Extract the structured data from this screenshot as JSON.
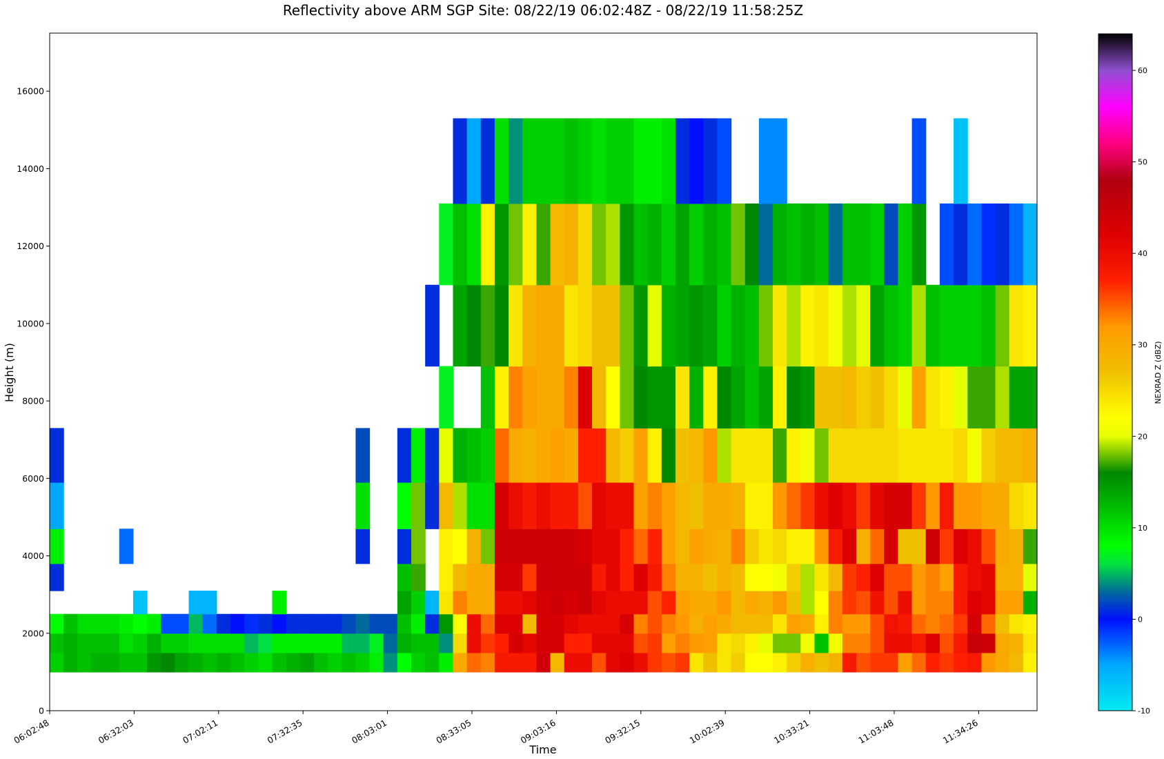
{
  "chart_data": {
    "type": "heatmap",
    "title": "Reflectivity above ARM SGP Site: 08/22/19 06:02:48Z - 08/22/19 11:58:25Z",
    "xlabel": "Time",
    "ylabel": "Height (m)",
    "x_ticks": [
      "06:02:48",
      "06:32:03",
      "07:02:11",
      "07:32:35",
      "08:03:01",
      "08:33:05",
      "09:03:16",
      "09:32:15",
      "10:02:39",
      "10:33:21",
      "11:03:48",
      "11:34:26"
    ],
    "y_ticks": [
      0,
      2000,
      4000,
      6000,
      8000,
      10000,
      12000,
      14000,
      16000
    ],
    "ylim": [
      0,
      17500
    ],
    "colorbar": {
      "label": "NEXRAD Z (dBZ)",
      "vmin": -10,
      "vmax": 64,
      "ticks": [
        -10,
        0,
        10,
        20,
        30,
        40,
        50,
        60
      ]
    },
    "height_bins": [
      {
        "from": 1000,
        "to": 1500
      },
      {
        "from": 1500,
        "to": 2000
      },
      {
        "from": 2000,
        "to": 2500
      },
      {
        "from": 2500,
        "to": 3100
      },
      {
        "from": 3100,
        "to": 3800
      },
      {
        "from": 3800,
        "to": 4700
      },
      {
        "from": 4700,
        "to": 5900
      },
      {
        "from": 5900,
        "to": 7300
      },
      {
        "from": 7300,
        "to": 8900
      },
      {
        "from": 8900,
        "to": 11000
      },
      {
        "from": 11000,
        "to": 13100
      },
      {
        "from": 13100,
        "to": 15300
      }
    ],
    "columns": [
      [
        11,
        12,
        8,
        null,
        1,
        9,
        -5,
        1,
        null,
        null,
        null,
        null
      ],
      [
        13,
        13,
        12,
        null,
        null,
        null,
        null,
        null,
        null,
        null,
        null,
        null
      ],
      [
        12,
        12,
        10,
        null,
        null,
        null,
        null,
        null,
        null,
        null,
        null,
        null
      ],
      [
        13,
        12,
        10,
        null,
        null,
        null,
        null,
        null,
        null,
        null,
        null,
        null
      ],
      [
        13,
        12,
        10,
        null,
        null,
        null,
        null,
        null,
        null,
        null,
        null,
        null
      ],
      [
        12,
        10,
        9,
        null,
        null,
        -3,
        null,
        null,
        null,
        null,
        null,
        null
      ],
      [
        12,
        11,
        8,
        -7,
        null,
        null,
        null,
        null,
        null,
        null,
        null,
        null
      ],
      [
        15,
        13,
        9,
        null,
        null,
        null,
        null,
        null,
        null,
        null,
        null,
        null
      ],
      [
        16,
        11,
        -2,
        null,
        null,
        null,
        null,
        null,
        null,
        null,
        null,
        null
      ],
      [
        14,
        11,
        -2,
        null,
        null,
        null,
        null,
        null,
        null,
        null,
        null,
        null
      ],
      [
        13,
        10,
        5,
        -6,
        null,
        null,
        null,
        null,
        null,
        null,
        null,
        null
      ],
      [
        12,
        10,
        -3,
        -6,
        null,
        null,
        null,
        null,
        null,
        null,
        null,
        null
      ],
      [
        13,
        10,
        1,
        null,
        null,
        null,
        null,
        null,
        null,
        null,
        null,
        null
      ],
      [
        12,
        10,
        0,
        null,
        null,
        null,
        null,
        null,
        null,
        null,
        null,
        null
      ],
      [
        11,
        5,
        -1,
        null,
        null,
        null,
        null,
        null,
        null,
        null,
        null,
        null
      ],
      [
        10,
        6,
        1,
        null,
        null,
        null,
        null,
        null,
        null,
        null,
        null,
        null
      ],
      [
        12,
        9,
        0,
        9,
        null,
        null,
        null,
        null,
        null,
        null,
        null,
        null
      ],
      [
        13,
        9,
        1,
        null,
        null,
        null,
        null,
        null,
        null,
        null,
        null,
        null
      ],
      [
        14,
        9,
        1,
        null,
        null,
        null,
        null,
        null,
        null,
        null,
        null,
        null
      ],
      [
        12,
        9,
        1,
        null,
        null,
        null,
        null,
        null,
        null,
        null,
        null,
        null
      ],
      [
        11,
        9,
        1,
        null,
        null,
        null,
        null,
        null,
        null,
        null,
        null,
        null
      ],
      [
        12,
        5,
        2,
        null,
        null,
        null,
        null,
        null,
        null,
        null,
        null,
        null
      ],
      [
        11,
        5,
        3,
        null,
        null,
        1,
        10,
        2,
        null,
        null,
        null,
        null
      ],
      [
        9,
        7,
        2,
        null,
        null,
        null,
        null,
        null,
        null,
        null,
        null,
        null
      ],
      [
        4,
        3,
        2,
        null,
        null,
        null,
        null,
        null,
        null,
        null,
        null,
        null
      ],
      [
        8,
        13,
        12,
        14,
        12,
        1,
        8,
        1,
        null,
        null,
        null,
        null
      ],
      [
        11,
        12,
        9,
        11,
        17,
        18,
        18,
        9,
        null,
        null,
        null,
        null
      ],
      [
        12,
        12,
        1,
        -6,
        null,
        null,
        1,
        1,
        null,
        1,
        null,
        null
      ],
      [
        9,
        4,
        15,
        24,
        23,
        23,
        28,
        20,
        7,
        null,
        7,
        null
      ],
      [
        30,
        25,
        22,
        33,
        28,
        22,
        19,
        13,
        null,
        14,
        12,
        1
      ],
      [
        34,
        40,
        40,
        30,
        30,
        29,
        10,
        12,
        null,
        16,
        10,
        -5
      ],
      [
        33,
        36,
        34,
        30,
        30,
        18,
        10,
        11,
        12,
        17,
        23,
        1
      ],
      [
        38,
        37,
        42,
        40,
        43,
        44,
        43,
        34,
        23,
        16,
        15,
        10
      ],
      [
        38,
        43,
        42,
        40,
        43,
        44,
        40,
        30,
        33,
        24,
        18,
        4
      ],
      [
        38,
        41,
        28,
        41,
        36,
        44,
        38,
        29,
        31,
        29,
        23,
        11
      ],
      [
        44,
        43,
        43,
        43,
        44,
        44,
        40,
        30,
        30,
        30,
        17,
        11
      ],
      [
        28,
        43,
        43,
        44,
        44,
        44,
        38,
        31,
        30,
        30,
        28,
        11
      ],
      [
        40,
        37,
        41,
        43,
        44,
        44,
        38,
        30,
        33,
        24,
        29,
        12
      ],
      [
        40,
        37,
        40,
        44,
        44,
        43,
        35,
        37,
        42,
        25,
        25,
        11
      ],
      [
        35,
        41,
        40,
        41,
        38,
        41,
        41,
        37,
        28,
        27,
        18,
        10
      ],
      [
        41,
        41,
        40,
        40,
        41,
        41,
        40,
        28,
        22,
        27,
        19,
        11
      ],
      [
        42,
        41,
        43,
        40,
        37,
        37,
        40,
        26,
        18,
        18,
        15,
        11
      ],
      [
        40,
        35,
        33,
        40,
        42,
        34,
        31,
        31,
        16,
        15,
        12,
        9
      ],
      [
        36,
        36,
        35,
        35,
        38,
        37,
        33,
        23,
        15,
        20,
        13,
        9
      ],
      [
        35,
        31,
        33,
        37,
        33,
        31,
        31,
        16,
        15,
        13,
        11,
        10
      ],
      [
        36,
        33,
        32,
        31,
        29,
        28,
        28,
        27,
        24,
        14,
        14,
        1
      ],
      [
        24,
        32,
        29,
        30,
        29,
        31,
        27,
        28,
        13,
        15,
        11,
        0
      ],
      [
        27,
        31,
        31,
        30,
        27,
        30,
        30,
        32,
        23,
        14,
        13,
        1
      ],
      [
        24,
        24,
        30,
        32,
        29,
        29,
        30,
        19,
        16,
        11,
        12,
        -2
      ],
      [
        26,
        25,
        28,
        28,
        28,
        33,
        29,
        24,
        14,
        13,
        18,
        null
      ],
      [
        22,
        23,
        28,
        30,
        22,
        26,
        23,
        24,
        12,
        12,
        16,
        null
      ],
      [
        22,
        20,
        28,
        29,
        22,
        24,
        23,
        24,
        14,
        18,
        3,
        -4
      ],
      [
        23,
        18,
        24,
        32,
        21,
        25,
        32,
        17,
        23,
        24,
        13,
        -4
      ],
      [
        26,
        18,
        31,
        27,
        26,
        23,
        34,
        23,
        16,
        19,
        12,
        null
      ],
      [
        29,
        21,
        30,
        19,
        19,
        23,
        36,
        21,
        15,
        23,
        13,
        null
      ],
      [
        27,
        12,
        23,
        22,
        24,
        32,
        40,
        18,
        27,
        24,
        12,
        null
      ],
      [
        29,
        21,
        33,
        33,
        28,
        38,
        42,
        25,
        27,
        21,
        3,
        null
      ],
      [
        38,
        33,
        32,
        36,
        36,
        42,
        40,
        25,
        28,
        19,
        12,
        null
      ],
      [
        35,
        33,
        32,
        35,
        37,
        29,
        36,
        25,
        26,
        20,
        12,
        null
      ],
      [
        36,
        35,
        35,
        39,
        42,
        34,
        41,
        25,
        27,
        14,
        11,
        null
      ],
      [
        36,
        40,
        39,
        35,
        35,
        43,
        43,
        25,
        25,
        12,
        2,
        null
      ],
      [
        31,
        40,
        38,
        40,
        35,
        27,
        43,
        24,
        20,
        11,
        11,
        null
      ],
      [
        34,
        38,
        34,
        32,
        32,
        27,
        36,
        24,
        31,
        19,
        15,
        -2
      ],
      [
        37,
        42,
        33,
        33,
        33,
        44,
        32,
        24,
        24,
        12,
        null,
        null
      ],
      [
        36,
        35,
        34,
        33,
        31,
        36,
        38,
        24,
        23,
        11,
        -2,
        null
      ],
      [
        37,
        38,
        36,
        38,
        38,
        42,
        32,
        25,
        20,
        11,
        1,
        -7
      ],
      [
        38,
        45,
        43,
        42,
        40,
        40,
        32,
        21,
        17,
        11,
        -3,
        null
      ],
      [
        32,
        44,
        34,
        41,
        41,
        35,
        30,
        26,
        17,
        12,
        -1,
        null
      ],
      [
        30,
        30,
        27,
        31,
        29,
        30,
        30,
        28,
        19,
        18,
        1,
        null
      ],
      [
        28,
        29,
        24,
        31,
        29,
        29,
        25,
        28,
        14,
        24,
        -3,
        null
      ],
      [
        23,
        24,
        23,
        13,
        20,
        17,
        24,
        29,
        14,
        23,
        -6,
        null
      ]
    ]
  }
}
